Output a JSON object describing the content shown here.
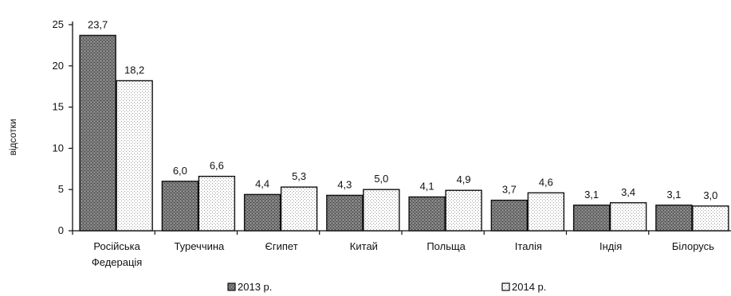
{
  "chart_data": {
    "type": "bar",
    "ylabel": "відсотки",
    "ylim": [
      0,
      25
    ],
    "yticks": [
      "0",
      "5",
      "10",
      "15",
      "20",
      "25"
    ],
    "categories": [
      [
        "Російська",
        "Федерація"
      ],
      [
        "Туреччина"
      ],
      [
        "Єгипет"
      ],
      [
        "Китай"
      ],
      [
        "Польща"
      ],
      [
        "Італія"
      ],
      [
        "Індія"
      ],
      [
        "Білорусь"
      ]
    ],
    "series": [
      {
        "name": "2013 р.",
        "values": [
          23.7,
          6.0,
          4.4,
          4.3,
          4.1,
          3.7,
          3.1,
          3.1
        ],
        "labels": [
          "23,7",
          "6,0",
          "4,4",
          "4,3",
          "4,1",
          "3,7",
          "3,1",
          "3,1"
        ]
      },
      {
        "name": "2014 р.",
        "values": [
          18.2,
          6.6,
          5.3,
          5.0,
          4.9,
          4.6,
          3.4,
          3.0
        ],
        "labels": [
          "18,2",
          "6,6",
          "5,3",
          "5,0",
          "4,9",
          "4,6",
          "3,4",
          "3,0"
        ]
      }
    ],
    "legend_position": "bottom",
    "grid": false,
    "colors": {
      "series_2013": "#6b6b6b",
      "series_2014": "#ffffff",
      "axis": "#111111"
    }
  }
}
